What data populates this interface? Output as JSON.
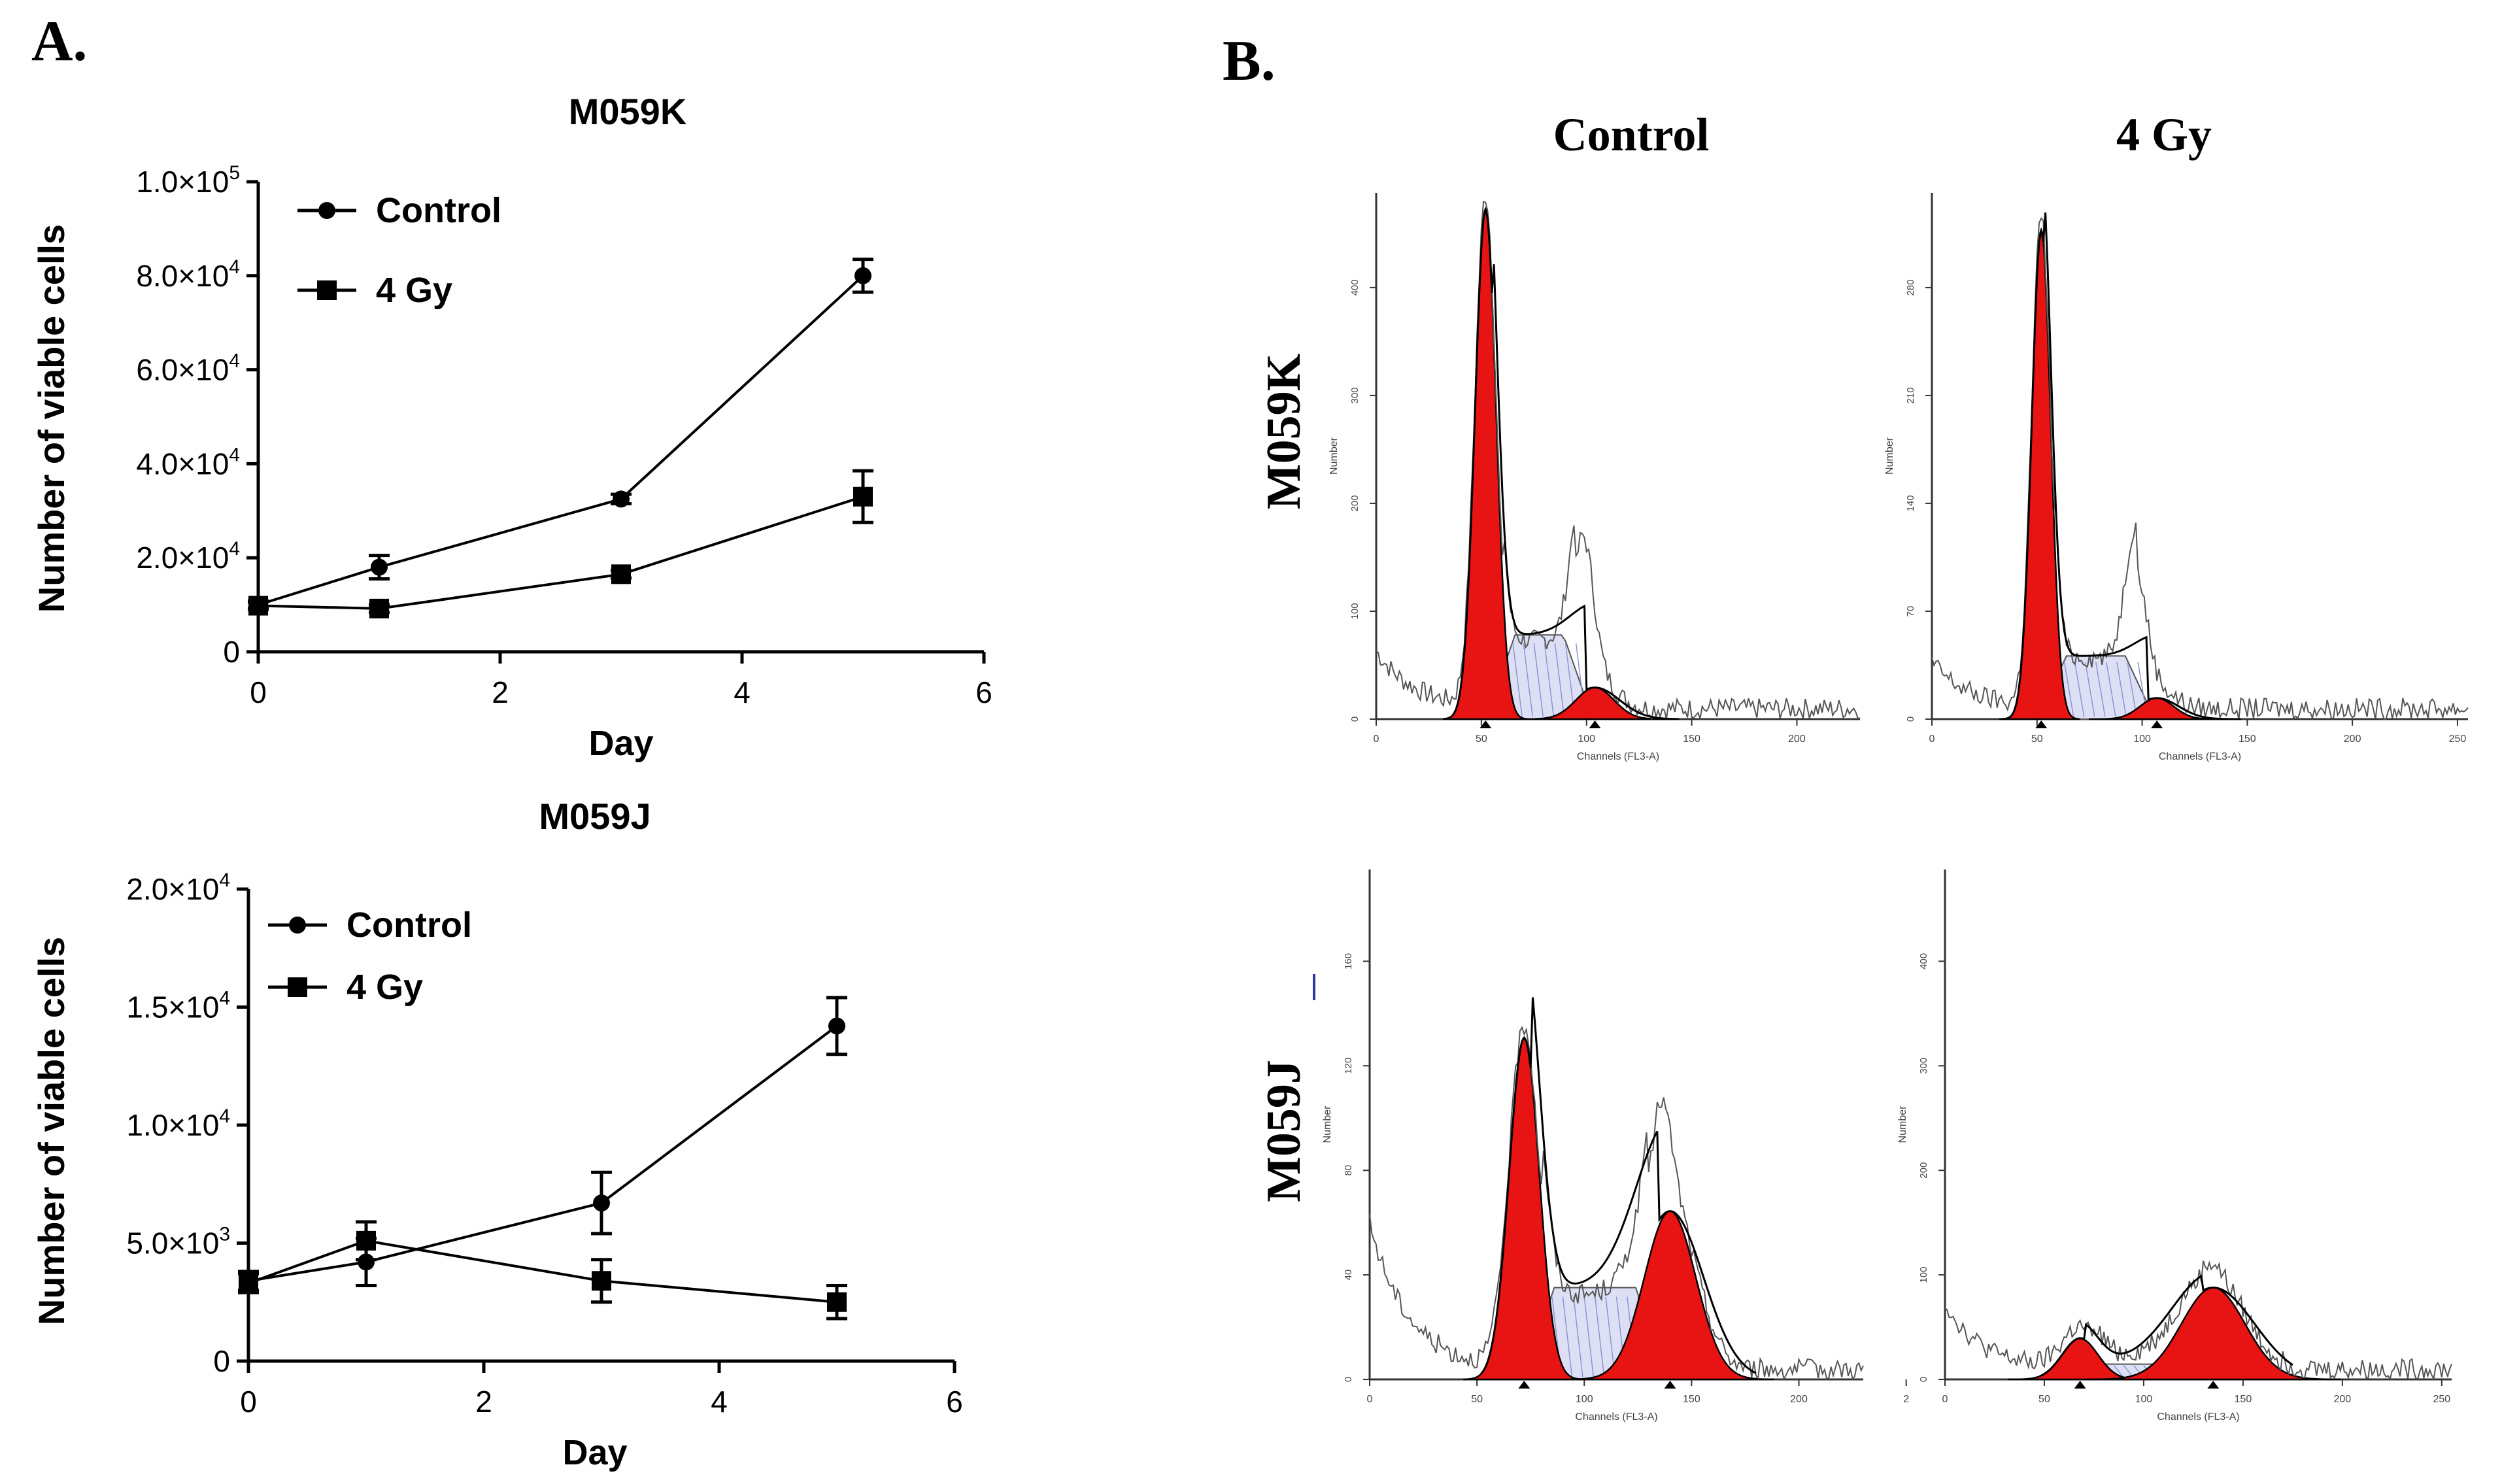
{
  "panels": {
    "a_label": "A.",
    "b_label": "B."
  },
  "chart_data": [
    {
      "type": "line",
      "title": "M059K",
      "xlabel": "Day",
      "ylabel": "Number of viable cells",
      "xlim": [
        0,
        6
      ],
      "ylim": [
        0,
        100000
      ],
      "x_ticks": [
        "0",
        "2",
        "4",
        "6"
      ],
      "y_ticks": [
        {
          "value": 0,
          "mant": "0",
          "exp": ""
        },
        {
          "value": 20000,
          "mant": "2.0×10",
          "exp": "4"
        },
        {
          "value": 40000,
          "mant": "4.0×10",
          "exp": "4"
        },
        {
          "value": 60000,
          "mant": "6.0×10",
          "exp": "4"
        },
        {
          "value": 80000,
          "mant": "8.0×10",
          "exp": "4"
        },
        {
          "value": 100000,
          "mant": "1.0×10",
          "exp": "5"
        }
      ],
      "legend_position": "top-left",
      "series": [
        {
          "name": "Control",
          "marker": "circle",
          "x": [
            0,
            1,
            3,
            5
          ],
          "values": [
            10000,
            18000,
            32500,
            80000
          ],
          "error": [
            800,
            2500,
            1000,
            3500
          ]
        },
        {
          "name": "4 Gy",
          "marker": "square",
          "x": [
            0,
            1,
            3,
            5
          ],
          "values": [
            9800,
            9200,
            16500,
            33000
          ],
          "error": [
            800,
            800,
            800,
            5500
          ]
        }
      ]
    },
    {
      "type": "line",
      "title": "M059J",
      "xlabel": "Day",
      "ylabel": "Number of viable cells",
      "xlim": [
        0,
        6
      ],
      "ylim": [
        0,
        20000
      ],
      "x_ticks": [
        "0",
        "2",
        "4",
        "6"
      ],
      "y_ticks": [
        {
          "value": 0,
          "mant": "0",
          "exp": ""
        },
        {
          "value": 5000,
          "mant": "5.0×10",
          "exp": "3"
        },
        {
          "value": 10000,
          "mant": "1.0×10",
          "exp": "4"
        },
        {
          "value": 15000,
          "mant": "1.5×10",
          "exp": "4"
        },
        {
          "value": 20000,
          "mant": "2.0×10",
          "exp": "4"
        }
      ],
      "legend_position": "top-left",
      "series": [
        {
          "name": "Control",
          "marker": "circle",
          "x": [
            0,
            1,
            3,
            5
          ],
          "values": [
            3400,
            4200,
            6700,
            14200
          ],
          "error": [
            400,
            1000,
            1300,
            1200
          ]
        },
        {
          "name": "4 Gy",
          "marker": "square",
          "x": [
            0,
            1,
            3,
            5
          ],
          "values": [
            3300,
            5100,
            3400,
            2500
          ],
          "error": [
            400,
            800,
            900,
            700
          ]
        }
      ]
    }
  ],
  "flow_cytometry": {
    "column_labels": [
      "Control",
      "4 Gy"
    ],
    "row_labels": [
      "M059K",
      "M059J"
    ],
    "y_axis_label": "Number",
    "x_axis_label": "Channels (FL3-A)",
    "histograms": [
      {
        "id": "m059k-control",
        "x_ticks": [
          "0",
          "50",
          "100",
          "150",
          "200"
        ],
        "y_ticks": [
          "0",
          "100",
          "200",
          "300",
          "400"
        ]
      },
      {
        "id": "m059k-4gy",
        "x_ticks": [
          "0",
          "50",
          "100",
          "150",
          "200",
          "250"
        ],
        "y_ticks": [
          "0",
          "70",
          "140",
          "210",
          "280"
        ]
      },
      {
        "id": "m059j-control",
        "x_ticks": [
          "0",
          "50",
          "100",
          "150",
          "200",
          "2"
        ],
        "y_ticks": [
          "0",
          "40",
          "80",
          "120",
          "160"
        ]
      },
      {
        "id": "m059j-4gy",
        "x_ticks": [
          "0",
          "50",
          "100",
          "150",
          "200",
          "250"
        ],
        "y_ticks": [
          "0",
          "100",
          "200",
          "300",
          "400"
        ]
      }
    ]
  }
}
